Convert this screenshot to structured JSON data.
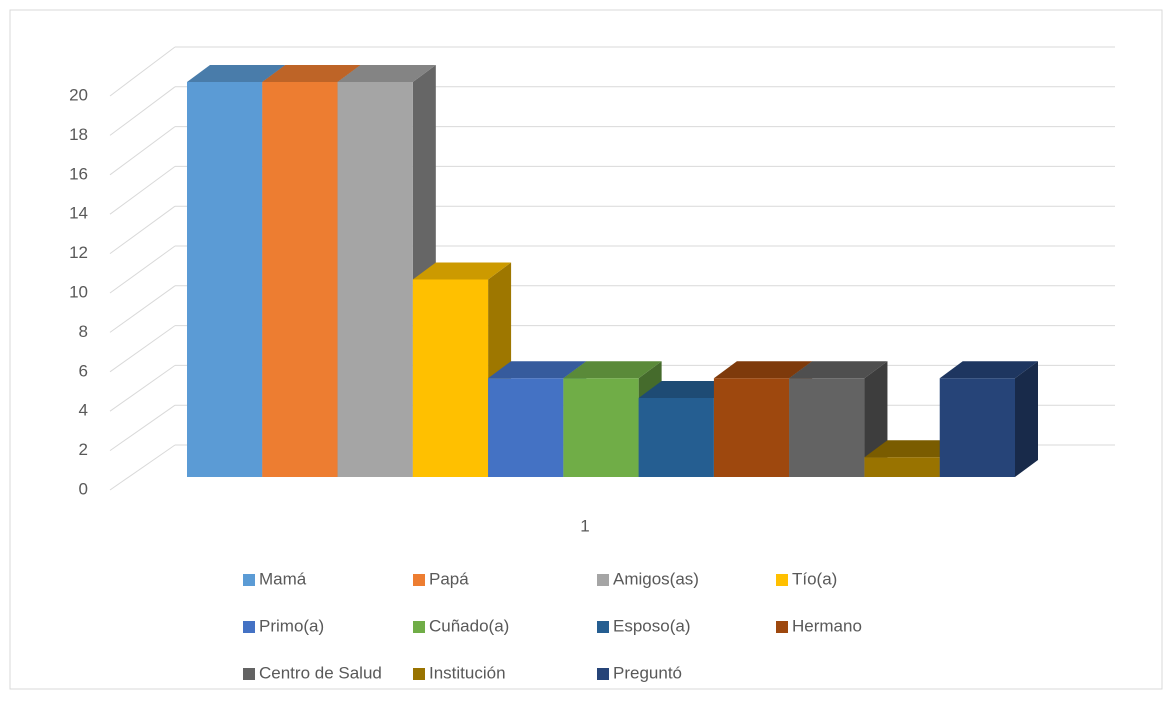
{
  "chart_data": {
    "type": "bar3d",
    "categories": [
      "1"
    ],
    "series": [
      {
        "name": "Mamá",
        "color": "#5b9bd5",
        "values": [
          20
        ]
      },
      {
        "name": "Papá",
        "color": "#ed7d31",
        "values": [
          20
        ]
      },
      {
        "name": "Amigos(as)",
        "color": "#a5a5a5",
        "values": [
          20
        ]
      },
      {
        "name": "Tío(a)",
        "color": "#ffc000",
        "values": [
          10
        ]
      },
      {
        "name": "Primo(a)",
        "color": "#4472c4",
        "values": [
          5
        ]
      },
      {
        "name": "Cuñado(a)",
        "color": "#70ad47",
        "values": [
          5
        ]
      },
      {
        "name": "Esposo(a)",
        "color": "#255e91",
        "values": [
          4
        ]
      },
      {
        "name": "Hermano",
        "color": "#9e480e",
        "values": [
          5
        ]
      },
      {
        "name": "Centro de Salud",
        "color": "#636363",
        "values": [
          5
        ]
      },
      {
        "name": "Institución",
        "color": "#997300",
        "values": [
          1
        ]
      },
      {
        "name": "Preguntó",
        "color": "#264478",
        "values": [
          5
        ]
      }
    ],
    "ylim": [
      0,
      20
    ],
    "yticks": [
      0,
      2,
      4,
      6,
      8,
      10,
      12,
      14,
      16,
      18,
      20
    ],
    "grid": true,
    "legend": "bottom"
  }
}
